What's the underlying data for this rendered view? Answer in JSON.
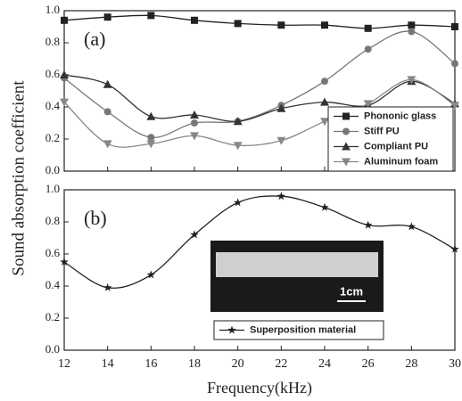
{
  "chart_data": [
    {
      "type": "line",
      "panel_label": "(a)",
      "y_label": "Sound absorption coefficient",
      "x": [
        12,
        14,
        16,
        18,
        20,
        22,
        24,
        26,
        28,
        30
      ],
      "xlim": [
        12,
        30
      ],
      "xticks": [
        12,
        14,
        16,
        18,
        20,
        22,
        24,
        26,
        28,
        30
      ],
      "ylim": [
        0,
        1
      ],
      "yticks": [
        {
          "value": 0,
          "label": "0.0"
        },
        0.2,
        0.4,
        0.6,
        0.8,
        {
          "value": 1,
          "label": "1.0"
        }
      ],
      "legend": "lower-right",
      "series": [
        {
          "name": "Phononic glass",
          "color": "#222222",
          "marker": "square",
          "values": [
            0.94,
            0.96,
            0.97,
            0.94,
            0.92,
            0.91,
            0.91,
            0.89,
            0.91,
            0.9
          ]
        },
        {
          "name": "Stiff PU",
          "color": "#777777",
          "marker": "circle",
          "values": [
            0.58,
            0.37,
            0.21,
            0.3,
            0.31,
            0.41,
            0.56,
            0.76,
            0.87,
            0.67
          ]
        },
        {
          "name": "Compliant PU",
          "color": "#333333",
          "marker": "triangle-up",
          "values": [
            0.6,
            0.54,
            0.34,
            0.35,
            0.31,
            0.39,
            0.43,
            0.41,
            0.56,
            0.42
          ]
        },
        {
          "name": "Aluminum foam",
          "color": "#888888",
          "marker": "triangle-down",
          "values": [
            0.43,
            0.17,
            0.17,
            0.22,
            0.16,
            0.19,
            0.31,
            0.42,
            0.57,
            0.41
          ]
        }
      ]
    },
    {
      "type": "line",
      "panel_label": "(b)",
      "x_label": "Frequency(kHz)",
      "annotation": "1cm",
      "x": [
        12,
        14,
        16,
        18,
        20,
        22,
        24,
        26,
        28,
        30
      ],
      "xlim": [
        12,
        30
      ],
      "xticks": [
        12,
        14,
        16,
        18,
        20,
        22,
        24,
        26,
        28,
        30
      ],
      "ylim": [
        0,
        1
      ],
      "yticks": [
        {
          "value": 0,
          "label": "0.0"
        },
        0.2,
        0.4,
        0.6,
        0.8,
        {
          "value": 1,
          "label": "1.0"
        }
      ],
      "legend": "lower-center",
      "series": [
        {
          "name": "Superposition material",
          "color": "#222222",
          "marker": "star",
          "values": [
            0.55,
            0.39,
            0.47,
            0.72,
            0.92,
            0.96,
            0.89,
            0.78,
            0.77,
            0.63
          ]
        }
      ]
    }
  ]
}
